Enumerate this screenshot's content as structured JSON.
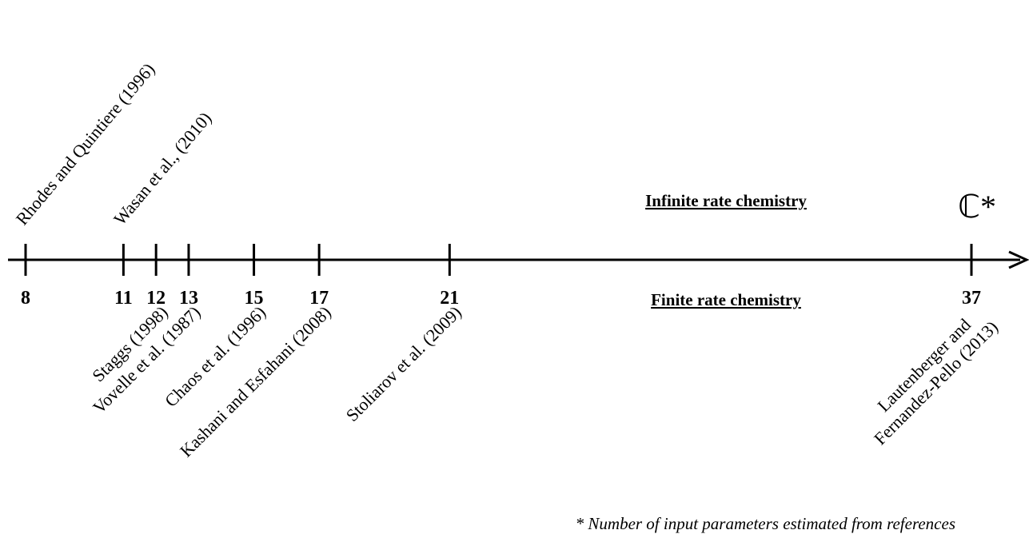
{
  "headings": {
    "infinite": "Infinite rate chemistry",
    "finite": "Finite rate chemistry",
    "symbol": "ℂ*"
  },
  "ticks": [
    {
      "value": 8,
      "refs_above": [
        "Rhodes and Quintiere (1996)"
      ]
    },
    {
      "value": 11,
      "refs_above": [
        "Wasan et al., (2010)"
      ]
    },
    {
      "value": 12,
      "refs_below": [
        [
          "Staggs (1998)"
        ]
      ]
    },
    {
      "value": 13,
      "refs_below": [
        [
          "Vovelle et al. (1987)"
        ]
      ]
    },
    {
      "value": 15,
      "refs_below": [
        [
          "Chaos et al. (1996)"
        ]
      ]
    },
    {
      "value": 17,
      "refs_below": [
        [
          "Kashani and Esfahani (2008)"
        ]
      ]
    },
    {
      "value": 21,
      "refs_below": [
        [
          "Stoliarov et al. (2009)"
        ]
      ]
    },
    {
      "value": 37,
      "refs_below": [
        [
          "Lautenberger and",
          "Fernandez-Pello (2013)"
        ]
      ]
    }
  ],
  "footnote": "* Number of input parameters estimated from references"
}
